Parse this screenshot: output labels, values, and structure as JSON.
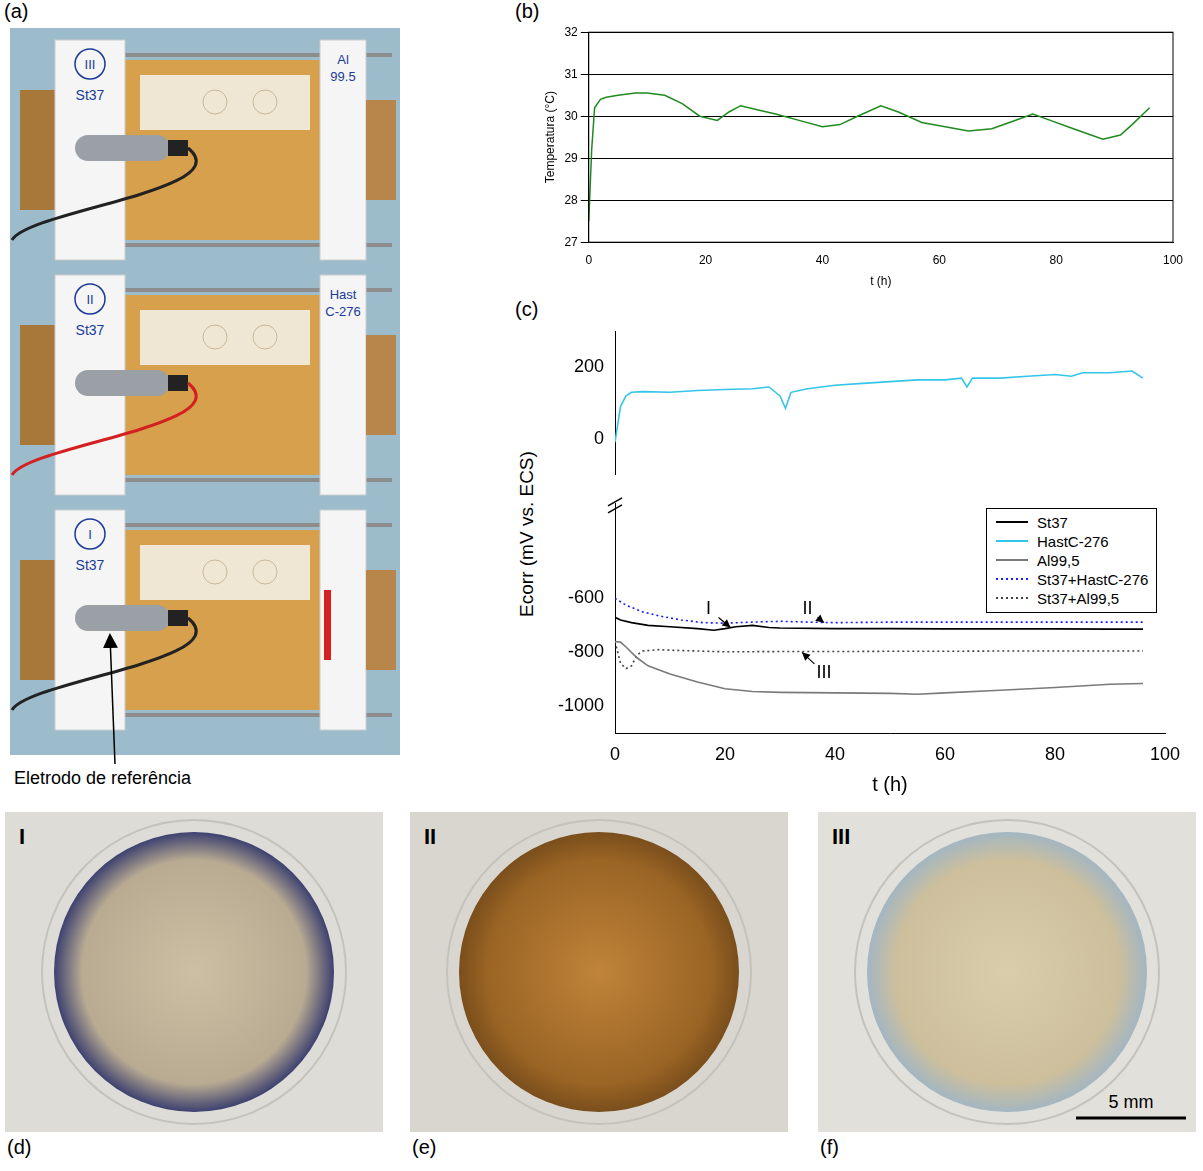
{
  "figure": {
    "panel_a": {
      "label": "(a)",
      "cells": [
        {
          "number": "III",
          "left": "St37",
          "right": "Al 99.5"
        },
        {
          "number": "II",
          "left": "St37",
          "right": "Hast C-276"
        },
        {
          "number": "I",
          "left": "St37"
        }
      ],
      "callout": "Eletrodo de referência"
    },
    "photos": [
      {
        "label": "(d)",
        "marker": "I"
      },
      {
        "label": "(e)",
        "marker": "II"
      },
      {
        "label": "(f)",
        "marker": "III"
      }
    ],
    "scale_bar": "5 mm"
  },
  "chart_data": [
    {
      "panel": "(b)",
      "type": "line",
      "x_label": "t (h)",
      "y_label": "Temperatura (°C)",
      "xlim": [
        0,
        100
      ],
      "xticks": [
        0,
        20,
        40,
        60,
        80,
        100
      ],
      "ylim": [
        27,
        32
      ],
      "yticks": [
        27,
        28,
        29,
        30,
        31,
        32
      ],
      "grid": "y",
      "color": "#1f8a1f",
      "x": [
        0,
        0.5,
        1,
        2,
        3,
        5,
        8,
        10,
        13,
        16,
        19,
        22,
        24,
        26,
        29,
        32,
        36,
        40,
        43,
        46,
        50,
        53,
        57,
        61,
        65,
        69,
        72,
        76,
        79,
        82,
        85,
        88,
        91,
        93,
        96
      ],
      "values": [
        27.5,
        29.2,
        30.2,
        30.4,
        30.45,
        30.5,
        30.55,
        30.55,
        30.5,
        30.3,
        30.0,
        29.9,
        30.1,
        30.25,
        30.15,
        30.05,
        29.9,
        29.75,
        29.8,
        30.0,
        30.25,
        30.1,
        29.85,
        29.75,
        29.65,
        29.7,
        29.85,
        30.05,
        29.9,
        29.75,
        29.6,
        29.45,
        29.55,
        29.8,
        30.2
      ]
    },
    {
      "panel": "(c)",
      "type": "line",
      "x_label": "t (h)",
      "y_label": "Ecorr (mV vs. ECS)",
      "xlim": [
        0,
        100
      ],
      "xticks": [
        0,
        20,
        40,
        60,
        80,
        100
      ],
      "ylim": [
        -1100,
        -250
      ],
      "yticks": [
        -1000,
        -800,
        -600
      ],
      "y2lim": [
        -100,
        300
      ],
      "y2ticks": [
        0,
        200
      ],
      "grid": false,
      "legend": "right",
      "series": [
        {
          "name": "St37",
          "color": "#000000",
          "line_style": "solid",
          "x": [
            0,
            1,
            3,
            6,
            10,
            15,
            18,
            20,
            22,
            25,
            28,
            30,
            40,
            50,
            60,
            70,
            80,
            90,
            96
          ],
          "values": [
            -670,
            -680,
            -690,
            -700,
            -705,
            -712,
            -718,
            -712,
            -705,
            -700,
            -708,
            -710,
            -712,
            -712,
            -713,
            -713,
            -713,
            -714,
            -714
          ]
        },
        {
          "name": "HastC-276",
          "color": "#33c6e8",
          "line_style": "solid",
          "axis": "y2",
          "x": [
            0,
            0.5,
            1,
            2,
            3,
            5,
            10,
            15,
            20,
            25,
            28,
            30,
            31,
            32,
            35,
            40,
            45,
            50,
            55,
            60,
            63,
            64,
            65,
            70,
            75,
            80,
            83,
            85,
            90,
            94,
            96
          ],
          "values": [
            -10,
            40,
            90,
            120,
            130,
            132,
            130,
            135,
            138,
            140,
            145,
            120,
            85,
            130,
            140,
            150,
            155,
            160,
            165,
            165,
            170,
            145,
            170,
            170,
            175,
            180,
            175,
            185,
            185,
            190,
            170
          ]
        },
        {
          "name": "Al99,5",
          "color": "#7a7a7a",
          "line_style": "solid",
          "x": [
            0,
            1,
            2,
            4,
            6,
            10,
            15,
            20,
            25,
            30,
            40,
            50,
            55,
            60,
            70,
            80,
            90,
            96
          ],
          "values": [
            -760,
            -762,
            -780,
            -820,
            -850,
            -880,
            -910,
            -935,
            -945,
            -948,
            -950,
            -952,
            -955,
            -950,
            -940,
            -930,
            -918,
            -915
          ]
        },
        {
          "name": "St37+HastC-276",
          "color": "#1a1aff",
          "line_style": "dotted",
          "x": [
            0,
            2,
            5,
            8,
            12,
            16,
            20,
            25,
            30,
            35,
            40,
            50,
            60,
            70,
            80,
            90,
            96
          ],
          "values": [
            -600,
            -625,
            -650,
            -665,
            -680,
            -690,
            -692,
            -688,
            -685,
            -688,
            -690,
            -688,
            -688,
            -688,
            -688,
            -688,
            -688
          ]
        },
        {
          "name": "St37+Al99,5",
          "color": "#444444",
          "line_style": "dotted",
          "x": [
            0,
            1,
            2,
            3,
            4,
            5,
            8,
            10,
            15,
            20,
            30,
            40,
            50,
            60,
            70,
            80,
            90,
            96
          ],
          "values": [
            -760,
            -840,
            -860,
            -850,
            -810,
            -795,
            -790,
            -792,
            -795,
            -798,
            -797,
            -797,
            -796,
            -796,
            -795,
            -795,
            -795,
            -795
          ]
        }
      ],
      "annotations": [
        {
          "text": "I",
          "x": 17,
          "y": -640,
          "target_x": 21,
          "target_y": -708
        },
        {
          "text": "II",
          "x": 35,
          "y": -640,
          "target_x": 38,
          "target_y": -690
        },
        {
          "text": "III",
          "x": 38,
          "y": -875,
          "target_x": 34,
          "target_y": -800
        }
      ]
    }
  ]
}
